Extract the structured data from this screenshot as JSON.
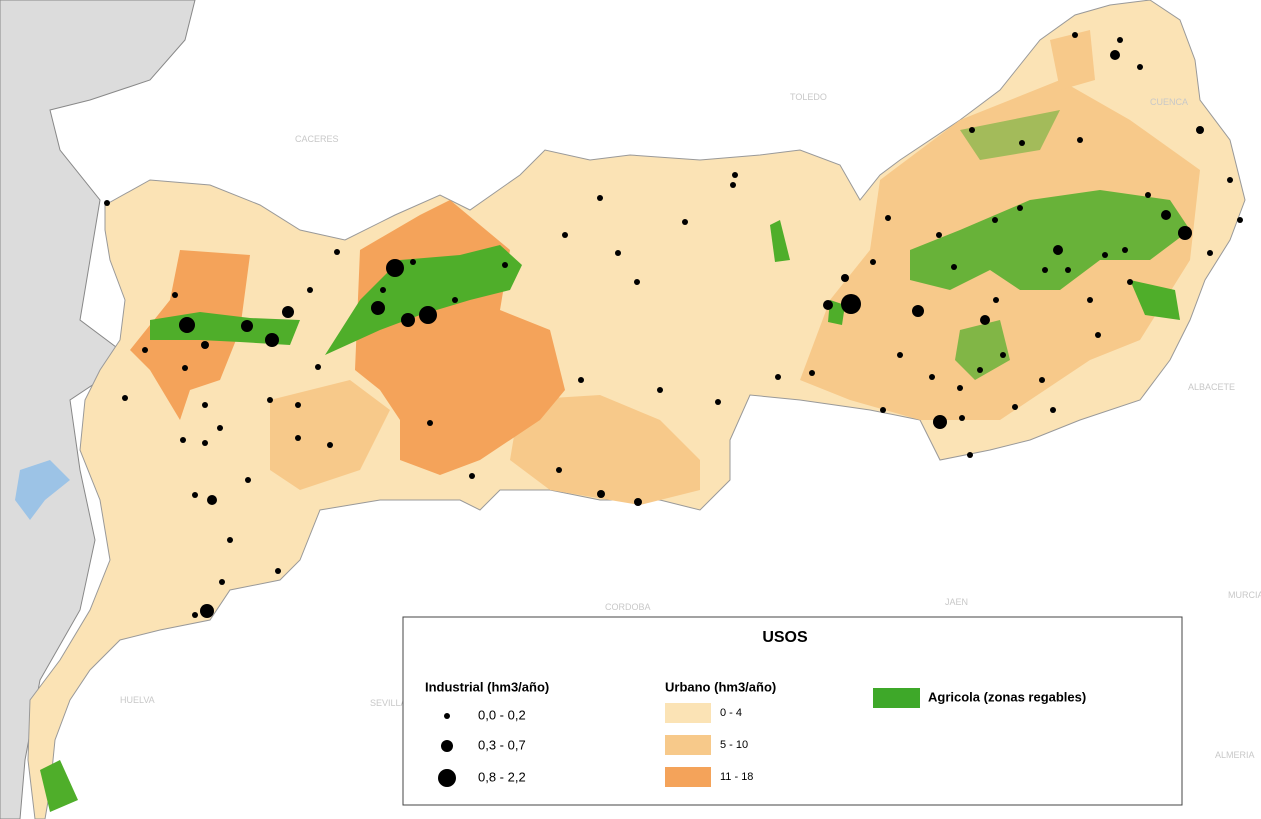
{
  "map_labels": [
    "CACERES",
    "TOLEDO",
    "CUENCA",
    "ALBACETE",
    "CORDOBA",
    "JAEN",
    "HUELVA",
    "SEVILLA",
    "MURCIA",
    "ALMERIA"
  ],
  "legend": {
    "title": "USOS",
    "industrial": {
      "title": "Industrial (hm3/año)",
      "classes": [
        "0,0 - 0,2",
        "0,3 - 0,7",
        "0,8 - 2,2"
      ]
    },
    "urban": {
      "title": "Urbano (hm3/año)",
      "classes": [
        "0 - 4",
        "5 - 10",
        "11 - 18"
      ]
    },
    "agricultural": {
      "label": "Agricola (zonas regables)"
    }
  }
}
